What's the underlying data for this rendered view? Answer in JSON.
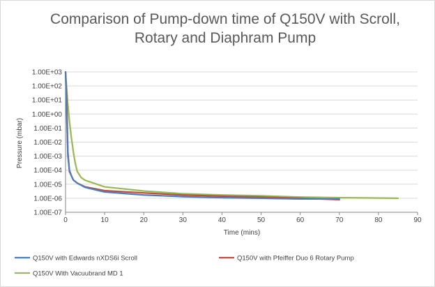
{
  "chart_data": {
    "type": "line",
    "title_lines": [
      "Comparison of Pump-down time of Q150V with Scroll,",
      "Rotary and Diaphram Pump"
    ],
    "xlabel": "Time (mins)",
    "ylabel": "Pressure (mbar)",
    "xlim": [
      0,
      90
    ],
    "x_ticks": [
      0,
      10,
      20,
      30,
      40,
      50,
      60,
      70,
      80,
      90
    ],
    "y_scale": "log",
    "ylim": [
      1e-07,
      1000
    ],
    "y_tick_labels": [
      "1.00E-07",
      "1.00E-06",
      "1.00E-05",
      "1.00E-04",
      "1.00E-03",
      "1.00E-02",
      "1.00E-01",
      "1.00E+00",
      "1.00E+01",
      "1.00E+02",
      "1.00E+03"
    ],
    "grid": "horizontal",
    "legend_position": "bottom",
    "series": [
      {
        "name": "Q150V with Edwards nXDS6i Scroll",
        "color": "#4a7ebb",
        "x": [
          0,
          0.3,
          0.6,
          1,
          1.5,
          2,
          3,
          5,
          10,
          20,
          30,
          40,
          50,
          60,
          70
        ],
        "y": [
          1000,
          1,
          0.001,
          0.0001,
          4e-05,
          2e-05,
          1.2e-05,
          6e-06,
          2.8e-06,
          1.7e-06,
          1.3e-06,
          1.1e-06,
          1e-06,
          9e-07,
          9e-07
        ]
      },
      {
        "name": "Q150V with Pfeiffer Duo 6 Rotary Pump",
        "color": "#be4b48",
        "x": [
          0,
          0.3,
          0.6,
          1,
          1.5,
          2,
          3,
          5,
          10,
          20,
          30,
          40,
          50,
          60,
          70
        ],
        "y": [
          1000,
          10,
          0.002,
          8e-05,
          4e-05,
          2e-05,
          1.2e-05,
          6.5e-06,
          3.5e-06,
          2.4e-06,
          1.7e-06,
          1.4e-06,
          1.2e-06,
          1e-06,
          8e-07
        ]
      },
      {
        "name": "Q150V With Vacuubrand MD 1",
        "color": "#98b954",
        "x": [
          0,
          0.5,
          1,
          1.5,
          2,
          2.5,
          3,
          4,
          5,
          10,
          20,
          30,
          40,
          50,
          60,
          70,
          85
        ],
        "y": [
          1000,
          10,
          0.3,
          0.02,
          0.002,
          0.0003,
          8e-05,
          3e-05,
          1.9e-05,
          6.5e-06,
          3.3e-06,
          2.1e-06,
          1.7e-06,
          1.5e-06,
          1.2e-06,
          1.1e-06,
          1e-06
        ]
      }
    ]
  }
}
